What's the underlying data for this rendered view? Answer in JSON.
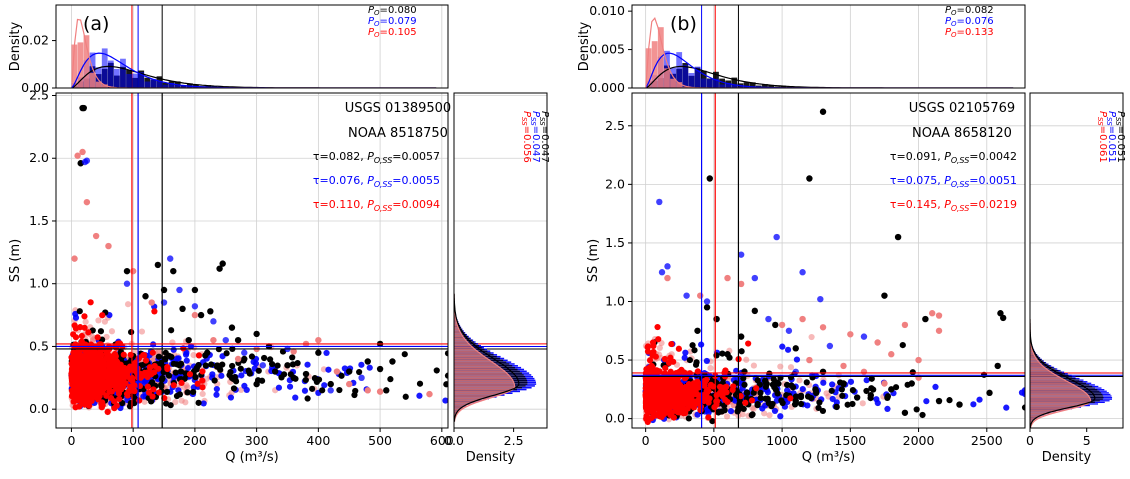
{
  "colors": {
    "black_series": "#000000",
    "blue_series": "#0000ff",
    "red_series": "#ff0000",
    "red_light": "#f08080",
    "overlap": "#5a0a4a"
  },
  "chart_data": [
    {
      "type": "scatter",
      "panel_label": "(a)",
      "station_usgs": "USGS 01389500",
      "station_noaa": "NOAA 8518750",
      "xlabel": "Q (m³/s)",
      "ylabel": "SS (m)",
      "xlim": [
        -25,
        610
      ],
      "ylim": [
        -0.15,
        2.52
      ],
      "xticks": [
        "0",
        "100",
        "200",
        "300",
        "400",
        "500",
        "600"
      ],
      "yticks": [
        "0.0",
        "0.5",
        "1.0",
        "1.5",
        "2.0",
        "2.5"
      ],
      "thresholds_q": {
        "black": 147,
        "blue": 108,
        "red": 98
      },
      "thresholds_ss": {
        "black": 0.48,
        "blue": 0.5,
        "red": 0.52
      },
      "stats": [
        {
          "series": "black",
          "tau": "0.082",
          "p_oss": "0.0057",
          "p_o": "0.080",
          "p_ss": "0.047"
        },
        {
          "series": "blue",
          "tau": "0.076",
          "p_oss": "0.0055",
          "p_o": "0.079",
          "p_ss": "0.047"
        },
        {
          "series": "red",
          "tau": "0.110",
          "p_oss": "0.0094",
          "p_o": "0.105",
          "p_ss": "0.056"
        }
      ],
      "top_density": {
        "ylabel": "Density",
        "yticks": [
          "0.00",
          "0.02"
        ],
        "ymax": 0.035,
        "ytick_vals": [
          0,
          0.02
        ]
      },
      "right_density": {
        "xlabel": "Density",
        "xticks": [
          "0.0",
          "2.5"
        ],
        "xmax": 3.9,
        "xtick_vals": [
          0,
          2.5
        ]
      },
      "series": [
        {
          "name": "black",
          "points": [
            [
              15,
              1.96
            ],
            [
              18,
              2.4
            ],
            [
              20,
              2.4
            ],
            [
              90,
              1.1
            ],
            [
              120,
              0.9
            ],
            [
              140,
              1.15
            ],
            [
              150,
              0.95
            ],
            [
              165,
              1.1
            ],
            [
              180,
              0.8
            ],
            [
              200,
              0.95
            ],
            [
              210,
              0.75
            ],
            [
              225,
              0.78
            ],
            [
              240,
              1.12
            ],
            [
              245,
              1.16
            ],
            [
              260,
              0.65
            ],
            [
              270,
              0.55
            ],
            [
              280,
              0.4
            ],
            [
              300,
              0.6
            ],
            [
              320,
              0.5
            ],
            [
              330,
              0.3
            ],
            [
              350,
              0.35
            ],
            [
              360,
              0.25
            ],
            [
              380,
              0.28
            ],
            [
              400,
              0.45
            ],
            [
              420,
              0.2
            ],
            [
              450,
              0.3
            ],
            [
              480,
              0.38
            ],
            [
              500,
              0.52
            ],
            [
              500,
              0.32
            ],
            [
              510,
              0.15
            ],
            [
              520,
              0.38
            ],
            [
              300,
              0.2
            ],
            [
              260,
              0.25
            ],
            [
              220,
              0.45
            ],
            [
              190,
              0.55
            ],
            [
              175,
              0.35
            ]
          ]
        },
        {
          "name": "blue",
          "points": [
            [
              22,
              1.97
            ],
            [
              25,
              1.98
            ],
            [
              90,
              1.0
            ],
            [
              150,
              0.85
            ],
            [
              160,
              1.2
            ],
            [
              175,
              0.95
            ],
            [
              200,
              0.82
            ],
            [
              230,
              0.7
            ],
            [
              250,
              0.55
            ],
            [
              280,
              0.45
            ],
            [
              310,
              0.35
            ],
            [
              350,
              0.48
            ],
            [
              420,
              0.15
            ],
            [
              470,
              0.25
            ]
          ]
        },
        {
          "name": "red",
          "points": [
            [
              5,
              1.2
            ],
            [
              10,
              2.02
            ],
            [
              18,
              2.05
            ],
            [
              25,
              1.65
            ],
            [
              40,
              1.38
            ],
            [
              60,
              1.3
            ],
            [
              100,
              1.1
            ],
            [
              130,
              0.85
            ],
            [
              200,
              0.75
            ],
            [
              230,
              0.55
            ],
            [
              270,
              0.4
            ],
            [
              300,
              0.48
            ],
            [
              360,
              0.46
            ],
            [
              380,
              0.52
            ],
            [
              400,
              0.55
            ],
            [
              430,
              0.3
            ],
            [
              450,
              0.2
            ],
            [
              480,
              0.15
            ],
            [
              500,
              0.14
            ],
            [
              580,
              0.12
            ]
          ]
        }
      ]
    },
    {
      "type": "scatter",
      "panel_label": "(b)",
      "station_usgs": "USGS 02105769",
      "station_noaa": "NOAA 8658120",
      "xlabel": "Q (m³/s)",
      "ylabel": "SS (m)",
      "xlim": [
        -100,
        2780
      ],
      "ylim": [
        -0.08,
        2.78
      ],
      "xticks": [
        "0",
        "500",
        "1000",
        "1500",
        "2000",
        "2500"
      ],
      "yticks": [
        "0.0",
        "0.5",
        "1.0",
        "1.5",
        "2.0",
        "2.5"
      ],
      "thresholds_q": {
        "black": 680,
        "blue": 410,
        "red": 510
      },
      "thresholds_ss": {
        "black": 0.36,
        "blue": 0.37,
        "red": 0.39
      },
      "stats": [
        {
          "series": "black",
          "tau": "0.091",
          "p_oss": "0.0042",
          "p_o": "0.082",
          "p_ss": "0.051"
        },
        {
          "series": "blue",
          "tau": "0.075",
          "p_oss": "0.0051",
          "p_o": "0.076",
          "p_ss": "0.051"
        },
        {
          "series": "red",
          "tau": "0.145",
          "p_oss": "0.0219",
          "p_o": "0.133",
          "p_ss": "0.061"
        }
      ],
      "top_density": {
        "ylabel": "Density",
        "yticks": [
          "0.000",
          "0.005",
          "0.010"
        ],
        "ymax": 0.0108,
        "ytick_vals": [
          0,
          0.005,
          0.01
        ]
      },
      "right_density": {
        "xlabel": "Density",
        "xticks": [
          "0",
          "5"
        ],
        "xmax": 8.2,
        "xtick_vals": [
          0,
          5
        ]
      },
      "series": [
        {
          "name": "black",
          "points": [
            [
              470,
              2.05
            ],
            [
              1200,
              2.05
            ],
            [
              1300,
              2.62
            ],
            [
              1850,
              1.55
            ],
            [
              1750,
              1.05
            ],
            [
              2050,
              0.85
            ],
            [
              2600,
              0.9
            ],
            [
              2620,
              0.86
            ],
            [
              2580,
              0.45
            ],
            [
              2520,
              0.22
            ],
            [
              2300,
              0.12
            ],
            [
              2150,
              0.15
            ],
            [
              1950,
              0.3
            ],
            [
              1800,
              0.25
            ],
            [
              1650,
              0.2
            ],
            [
              1450,
              0.3
            ],
            [
              1300,
              0.4
            ],
            [
              1100,
              0.6
            ],
            [
              950,
              0.8
            ],
            [
              800,
              0.92
            ],
            [
              700,
              0.7
            ],
            [
              600,
              0.55
            ],
            [
              520,
              0.85
            ],
            [
              450,
              0.95
            ],
            [
              380,
              0.75
            ],
            [
              1100,
              0.15
            ],
            [
              1250,
              0.22
            ],
            [
              1400,
              0.1
            ],
            [
              1550,
              0.18
            ],
            [
              1900,
              0.05
            ]
          ]
        },
        {
          "name": "blue",
          "points": [
            [
              100,
              1.85
            ],
            [
              120,
              1.25
            ],
            [
              160,
              1.3
            ],
            [
              300,
              1.05
            ],
            [
              450,
              1.0
            ],
            [
              700,
              1.4
            ],
            [
              800,
              1.2
            ],
            [
              960,
              1.55
            ],
            [
              1150,
              1.25
            ],
            [
              1280,
              1.02
            ],
            [
              900,
              0.85
            ],
            [
              1050,
              0.75
            ],
            [
              1350,
              0.62
            ],
            [
              1600,
              0.7
            ],
            [
              1100,
              0.4
            ]
          ]
        },
        {
          "name": "red",
          "points": [
            [
              160,
              1.2
            ],
            [
              400,
              1.05
            ],
            [
              600,
              1.2
            ],
            [
              700,
              1.15
            ],
            [
              1000,
              0.8
            ],
            [
              1150,
              0.85
            ],
            [
              1300,
              0.78
            ],
            [
              1500,
              0.72
            ],
            [
              1700,
              0.65
            ],
            [
              1800,
              0.55
            ],
            [
              2000,
              0.5
            ],
            [
              2100,
              0.9
            ],
            [
              2150,
              0.88
            ],
            [
              2150,
              0.75
            ],
            [
              1900,
              0.8
            ],
            [
              1450,
              0.45
            ],
            [
              1600,
              0.4
            ],
            [
              1200,
              0.5
            ],
            [
              2000,
              0.35
            ],
            [
              1750,
              0.3
            ]
          ]
        }
      ]
    }
  ]
}
